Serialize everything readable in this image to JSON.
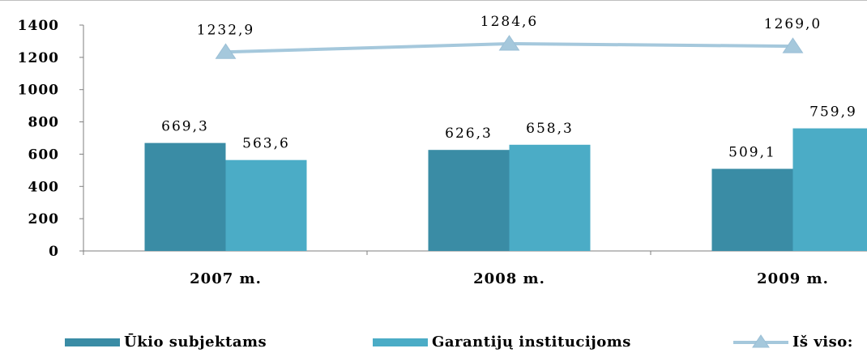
{
  "chart_data": {
    "type": "bar",
    "categories": [
      "2007 m.",
      "2008 m.",
      "2009 m."
    ],
    "series": [
      {
        "name": "Ūkio subjektams",
        "kind": "bar",
        "color": "#3a8ca5",
        "values": [
          669.3,
          626.3,
          509.1
        ],
        "labels": [
          "669,3",
          "626,3",
          "509,1"
        ]
      },
      {
        "name": "Garantijų institucijoms",
        "kind": "bar",
        "color": "#4bacc6",
        "values": [
          563.6,
          658.3,
          759.9
        ],
        "labels": [
          "563,6",
          "658,3",
          "759,9"
        ]
      },
      {
        "name": "Iš viso:",
        "kind": "line",
        "marker": "triangle",
        "color": "#a5c8dc",
        "values": [
          1232.9,
          1284.6,
          1269.0
        ],
        "labels": [
          "1232,9",
          "1284,6",
          "1269,0"
        ]
      }
    ],
    "y_ticks": [
      "0",
      "200",
      "400",
      "600",
      "800",
      "1000",
      "1200",
      "1400"
    ],
    "ylim": [
      0,
      1400
    ],
    "grid": false,
    "legend_position": "bottom"
  }
}
